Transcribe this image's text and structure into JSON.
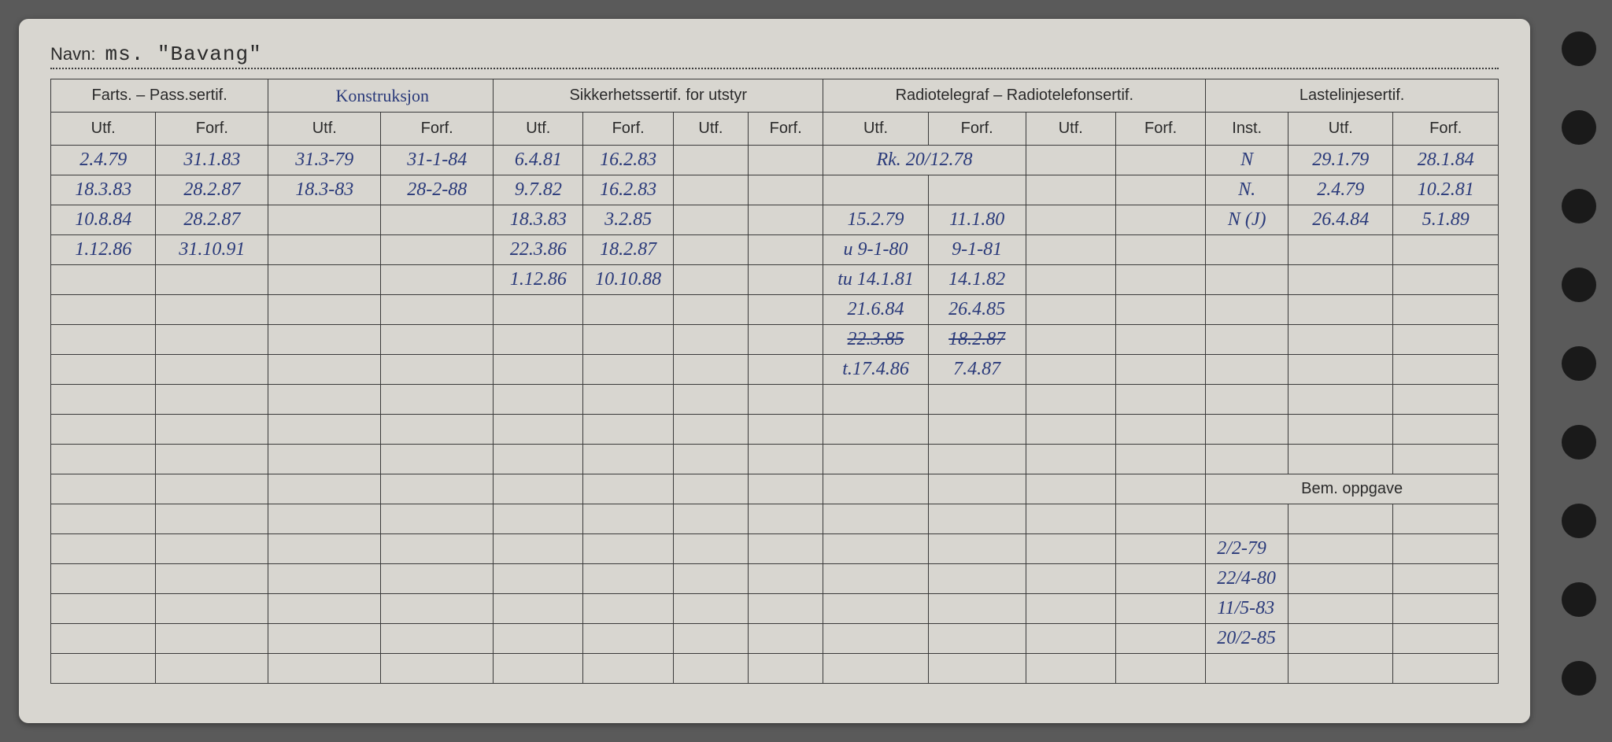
{
  "name_label": "Navn:",
  "name_value": "ms. \"Bavang\"",
  "groups": {
    "farts": "Farts. – Pass.sertif.",
    "konstr": "Konstruksjon",
    "sikker": "Sikkerhetssertif. for utstyr",
    "radio": "Radiotelegraf – Radiotelefonsertif.",
    "laste": "Lastelinjesertif.",
    "bem": "Bem. oppgave"
  },
  "sub": {
    "utf": "Utf.",
    "forf": "Forf.",
    "inst": "Inst."
  },
  "rows": [
    {
      "c0": "2.4.79",
      "c1": "31.1.83",
      "c2": "31.3-79",
      "c3": "31-1-84",
      "c4": "6.4.81",
      "c5": "16.2.83",
      "c6": "",
      "c7": "",
      "c8": "Rk. 20/12.78",
      "c8span": 2,
      "c10": "",
      "c11": "",
      "c12": "N",
      "c13": "29.1.79",
      "c14": "28.1.84"
    },
    {
      "c0": "18.3.83",
      "c1": "28.2.87",
      "c2": "18.3-83",
      "c3": "28-2-88",
      "c4": "9.7.82",
      "c5": "16.2.83",
      "c6": "",
      "c7": "",
      "c8": "",
      "c9": "",
      "c10": "",
      "c11": "",
      "c12": "N.",
      "c13": "2.4.79",
      "c14": "10.2.81"
    },
    {
      "c0": "10.8.84",
      "c1": "28.2.87",
      "c2": "",
      "c3": "",
      "c4": "18.3.83",
      "c5": "3.2.85",
      "c6": "",
      "c7": "",
      "c8": "15.2.79",
      "c9": "11.1.80",
      "c10": "",
      "c11": "",
      "c12": "N (J)",
      "c13": "26.4.84",
      "c14": "5.1.89"
    },
    {
      "c0": "1.12.86",
      "c1": "31.10.91",
      "c2": "",
      "c3": "",
      "c4": "22.3.86",
      "c5": "18.2.87",
      "c6": "",
      "c7": "",
      "c8": "u 9-1-80",
      "c9": "9-1-81",
      "c10": "",
      "c11": "",
      "c12": "",
      "c13": "",
      "c14": ""
    },
    {
      "c0": "",
      "c1": "",
      "c2": "",
      "c3": "",
      "c4": "1.12.86",
      "c5": "10.10.88",
      "c6": "",
      "c7": "",
      "c8": "tu 14.1.81",
      "c9": "14.1.82",
      "c10": "",
      "c11": "",
      "c12": "",
      "c13": "",
      "c14": ""
    },
    {
      "c0": "",
      "c1": "",
      "c2": "",
      "c3": "",
      "c4": "",
      "c5": "",
      "c6": "",
      "c7": "",
      "c8": "21.6.84",
      "c9": "26.4.85",
      "c10": "",
      "c11": "",
      "c12": "",
      "c13": "",
      "c14": ""
    },
    {
      "c0": "",
      "c1": "",
      "c2": "",
      "c3": "",
      "c4": "",
      "c5": "",
      "c6": "",
      "c7": "",
      "c8": "22.3.85",
      "c8strike": true,
      "c9": "18.2.87",
      "c9strike": true,
      "c10": "",
      "c11": "",
      "c12": "",
      "c13": "",
      "c14": ""
    },
    {
      "c0": "",
      "c1": "",
      "c2": "",
      "c3": "",
      "c4": "",
      "c5": "",
      "c6": "",
      "c7": "",
      "c8": "t.17.4.86",
      "c9": "7.4.87",
      "c10": "",
      "c11": "",
      "c12": "",
      "c13": "",
      "c14": ""
    }
  ],
  "bem_rows": [
    "2/2-79",
    "22/4-80",
    "11/5-83",
    "20/2-85"
  ],
  "colors": {
    "card_bg": "#d8d6d0",
    "ink_blue": "#2a3a7a",
    "ink_red": "#b03838",
    "line": "#3a3a3a"
  }
}
